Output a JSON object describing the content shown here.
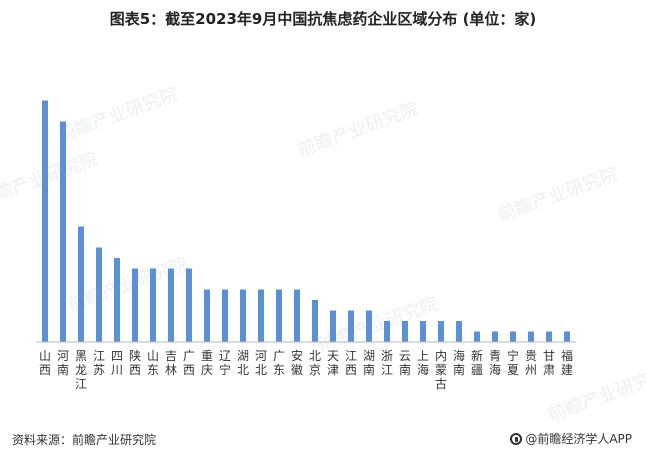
{
  "title": "图表5：截至2023年9月中国抗焦虑药企业区域分布 (单位：家)",
  "source": "资料来源：前瞻产业研究院",
  "brand": "@前瞻经济学人APP",
  "watermark": "前瞻产业研究院",
  "colors": {
    "bar": "#5b8fd6",
    "axis": "#bbbbbb"
  },
  "chart_data": {
    "type": "bar",
    "title": "图表5：截至2023年9月中国抗焦虑药企业区域分布 (单位：家)",
    "categories": [
      "山西",
      "河南",
      "黑龙江",
      "江苏",
      "四川",
      "陕西",
      "山东",
      "吉林",
      "广西",
      "重庆",
      "辽宁",
      "湖北",
      "河北",
      "广东",
      "安徽",
      "北京",
      "天津",
      "江西",
      "湖南",
      "浙江",
      "云南",
      "上海",
      "内蒙古",
      "海南",
      "新疆",
      "青海",
      "宁夏",
      "贵州",
      "甘肃",
      "福建"
    ],
    "values": [
      23,
      21,
      11,
      9,
      8,
      7,
      7,
      7,
      7,
      5,
      5,
      5,
      5,
      5,
      5,
      4,
      3,
      3,
      3,
      2,
      2,
      2,
      2,
      2,
      1,
      1,
      1,
      1,
      1,
      1
    ],
    "ylim": [
      0,
      24
    ],
    "grid": false,
    "legend": "none"
  }
}
